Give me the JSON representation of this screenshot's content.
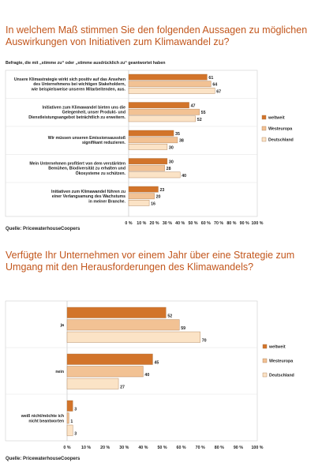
{
  "chart_data": [
    {
      "type": "bar",
      "orientation": "horizontal",
      "title": "In welchem Maß stimmen Sie den folgenden Aussagen zu möglichen Auswirkungen von Initiativen zum Klimawandel zu?",
      "subtitle": "Befragte, die mit „stimme zu“ oder „stimme ausdrücklich zu“ geantwortet haben",
      "categories": [
        "Unsere Klimastrategie wirkt sich positiv auf das Ansehen des Unternehmens bei wichtigen Stakeholdern, wie beispielsweise unseren Mitarbeitenden, aus.",
        "Initiativen zum Klimawandel bieten uns die Gelegenheit, unser Produkt- und Dienstleistungsangebot beträchtlich zu erweitern.",
        "Wir müssen unseren Emissionsausstoß signifikant reduzieren.",
        "Mein Unternehmen profitiert von dem verstärkten Bemühen, Biodiversität zu erhalten und Ökosysteme zu schützen.",
        "Initiativen zum Klimawandel führen zu einer Verlangsamung des Wachstums in meiner Branche."
      ],
      "category_lines": [
        [
          "Unsere Klimastrategie wirkt sich positiv auf das Ansehen",
          "des Unternehmens bei wichtigen Stakeholdern,",
          "wie beispielsweise unseren Mitarbeitenden, aus."
        ],
        [
          "Initiativen zum Klimawandel bieten uns die",
          "Gelegenheit, unser Produkt- und",
          "Dienstleistungsangebot beträchtlich zu erweitern."
        ],
        [
          "Wir müssen unseren Emissionsausstoß",
          "signifikant reduzieren."
        ],
        [
          "Mein Unternehmen profitiert von dem verstärkten",
          "Bemühen, Biodiversität zu erhalten und",
          "Ökosysteme zu schützen."
        ],
        [
          "Initiativen zum Klimawandel führen zu",
          "einer Verlangsamung des Wachstums",
          "in meiner Branche."
        ]
      ],
      "series": [
        {
          "name": "weltweit",
          "color": "#d2742a",
          "values": [
            61,
            47,
            35,
            30,
            23
          ]
        },
        {
          "name": "Westeuropa",
          "color": "#f2c294",
          "values": [
            64,
            55,
            38,
            28,
            20
          ]
        },
        {
          "name": "Deutschland",
          "color": "#fbe3c6",
          "values": [
            67,
            52,
            30,
            40,
            16
          ]
        }
      ],
      "xlim": [
        0,
        100
      ],
      "x_ticks": [
        "0 %",
        "10 %",
        "20 %",
        "30 %",
        "40 %",
        "50 %",
        "60 %",
        "70 %",
        "80 %",
        "90 %",
        "100 %"
      ],
      "legend_position": "right",
      "source": "Quelle: PricewaterhouseCoopers"
    },
    {
      "type": "bar",
      "orientation": "horizontal",
      "title": "Verfügte Ihr Unternehmen vor einem Jahr über eine Strategie zum Umgang mit den Herausforderungen des Klimawandels?",
      "categories": [
        "ja",
        "nein",
        "weiß nicht/möchte ich nicht beantworten"
      ],
      "category_lines": [
        [
          "ja"
        ],
        [
          "nein"
        ],
        [
          "weiß nicht/möchte ich",
          "nicht beantworten"
        ]
      ],
      "series": [
        {
          "name": "weltweit",
          "color": "#d2742a",
          "values": [
            52,
            45,
            3
          ]
        },
        {
          "name": "Westeuropa",
          "color": "#f2c294",
          "values": [
            59,
            40,
            1
          ]
        },
        {
          "name": "Deutschland",
          "color": "#fbe3c6",
          "values": [
            70,
            27,
            3
          ]
        }
      ],
      "xlim": [
        0,
        100
      ],
      "x_ticks": [
        "0 %",
        "10 %",
        "20 %",
        "30 %",
        "40 %",
        "50 %",
        "60 %",
        "70 %",
        "80 %",
        "90 %",
        "100 %"
      ],
      "legend_position": "right",
      "source": "Quelle: PricewaterhouseCoopers"
    }
  ]
}
